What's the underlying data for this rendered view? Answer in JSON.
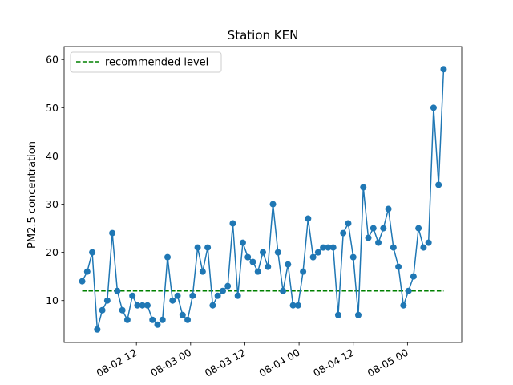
{
  "chart_data": {
    "type": "line",
    "title": "Station KEN",
    "xlabel": "",
    "ylabel": "PM2.5 concentration",
    "x_start": "2025-08-02 00:00",
    "x_end": "2025-08-05 08:00",
    "xlim": [
      "2025-08-01 20:00",
      "2025-08-05 12:00"
    ],
    "ylim": [
      1.3,
      62.7
    ],
    "x_ticks": [
      {
        "at": "2025-08-02 12:00",
        "label": "08-02 12"
      },
      {
        "at": "2025-08-03 00:00",
        "label": "08-03 00"
      },
      {
        "at": "2025-08-03 12:00",
        "label": "08-03 12"
      },
      {
        "at": "2025-08-04 00:00",
        "label": "08-04 00"
      },
      {
        "at": "2025-08-04 12:00",
        "label": "08-04 12"
      },
      {
        "at": "2025-08-05 00:00",
        "label": "08-05 00"
      }
    ],
    "y_ticks": [
      10,
      20,
      30,
      40,
      50,
      60
    ],
    "series": [
      {
        "name": "",
        "color": "#1f77b4",
        "marker": "circle",
        "values": [
          14,
          16,
          20,
          4,
          8,
          10,
          24,
          12,
          8,
          6,
          11,
          9,
          9,
          9,
          6,
          5,
          6,
          19,
          10,
          11,
          7,
          6,
          11,
          21,
          16,
          21,
          9,
          11,
          12,
          13,
          26,
          11,
          22,
          19,
          18,
          16,
          20,
          17,
          30,
          20,
          12,
          17.5,
          9,
          9,
          16,
          27,
          19,
          20,
          21,
          21,
          21,
          7,
          24,
          26,
          19,
          7,
          33.5,
          23,
          25,
          22,
          25,
          29,
          21,
          17,
          9,
          12,
          15,
          25,
          21,
          22,
          50,
          34,
          58
        ]
      }
    ],
    "reference_line": {
      "name": "recommended level",
      "value": 12,
      "color": "#008000",
      "style": "dashed"
    },
    "legend": {
      "placement": "top-left"
    },
    "grid": false
  }
}
